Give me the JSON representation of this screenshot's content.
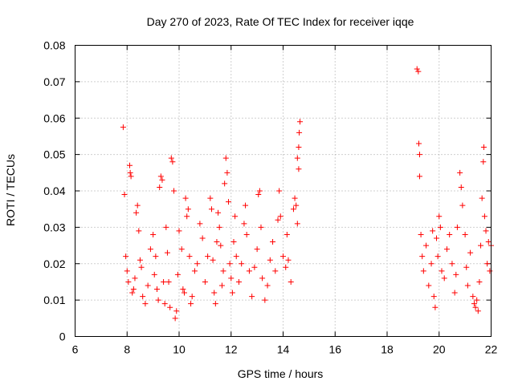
{
  "chart_data": {
    "type": "scatter",
    "title": "Day 270 of 2023, Rate Of TEC Index for receiver iqqe",
    "xlabel": "GPS time / hours",
    "ylabel": "ROTI / TECUs",
    "xlim": [
      6,
      22
    ],
    "ylim": [
      0,
      0.08
    ],
    "grid": true,
    "marker": "+",
    "series_color": "#ff0000",
    "x_ticks": [
      {
        "value": 6,
        "label": "6"
      },
      {
        "value": 8,
        "label": "8"
      },
      {
        "value": 10,
        "label": "10"
      },
      {
        "value": 12,
        "label": "12"
      },
      {
        "value": 14,
        "label": "14"
      },
      {
        "value": 16,
        "label": "16"
      },
      {
        "value": 18,
        "label": "18"
      },
      {
        "value": 20,
        "label": "20"
      },
      {
        "value": 22,
        "label": "22"
      }
    ],
    "y_ticks": [
      {
        "value": 0,
        "label": "0"
      },
      {
        "value": 0.01,
        "label": "0.01"
      },
      {
        "value": 0.02,
        "label": "0.02"
      },
      {
        "value": 0.03,
        "label": "0.03"
      },
      {
        "value": 0.04,
        "label": "0.04"
      },
      {
        "value": 0.05,
        "label": "0.05"
      },
      {
        "value": 0.06,
        "label": "0.06"
      },
      {
        "value": 0.07,
        "label": "0.07"
      },
      {
        "value": 0.08,
        "label": "0.08"
      }
    ],
    "points": [
      [
        7.85,
        0.0575
      ],
      [
        7.9,
        0.039
      ],
      [
        7.95,
        0.022
      ],
      [
        8.0,
        0.018
      ],
      [
        8.05,
        0.015
      ],
      [
        8.1,
        0.047
      ],
      [
        8.12,
        0.045
      ],
      [
        8.15,
        0.044
      ],
      [
        8.2,
        0.012
      ],
      [
        8.25,
        0.013
      ],
      [
        8.3,
        0.016
      ],
      [
        8.35,
        0.034
      ],
      [
        8.4,
        0.036
      ],
      [
        8.45,
        0.029
      ],
      [
        8.5,
        0.021
      ],
      [
        8.55,
        0.019
      ],
      [
        8.6,
        0.011
      ],
      [
        8.7,
        0.009
      ],
      [
        8.8,
        0.014
      ],
      [
        8.9,
        0.024
      ],
      [
        9.0,
        0.028
      ],
      [
        9.05,
        0.017
      ],
      [
        9.1,
        0.022
      ],
      [
        9.15,
        0.013
      ],
      [
        9.2,
        0.01
      ],
      [
        9.25,
        0.041
      ],
      [
        9.3,
        0.044
      ],
      [
        9.35,
        0.043
      ],
      [
        9.4,
        0.015
      ],
      [
        9.45,
        0.009
      ],
      [
        9.5,
        0.03
      ],
      [
        9.55,
        0.023
      ],
      [
        9.6,
        0.015
      ],
      [
        9.65,
        0.008
      ],
      [
        9.7,
        0.049
      ],
      [
        9.75,
        0.048
      ],
      [
        9.8,
        0.04
      ],
      [
        9.85,
        0.005
      ],
      [
        9.9,
        0.007
      ],
      [
        9.95,
        0.017
      ],
      [
        10.0,
        0.029
      ],
      [
        10.1,
        0.024
      ],
      [
        10.15,
        0.013
      ],
      [
        10.2,
        0.012
      ],
      [
        10.25,
        0.038
      ],
      [
        10.3,
        0.033
      ],
      [
        10.35,
        0.035
      ],
      [
        10.4,
        0.022
      ],
      [
        10.45,
        0.009
      ],
      [
        10.5,
        0.011
      ],
      [
        10.6,
        0.018
      ],
      [
        10.7,
        0.02
      ],
      [
        10.8,
        0.031
      ],
      [
        10.9,
        0.027
      ],
      [
        11.0,
        0.015
      ],
      [
        11.1,
        0.022
      ],
      [
        11.2,
        0.038
      ],
      [
        11.25,
        0.035
      ],
      [
        11.3,
        0.021
      ],
      [
        11.35,
        0.012
      ],
      [
        11.4,
        0.009
      ],
      [
        11.45,
        0.026
      ],
      [
        11.5,
        0.034
      ],
      [
        11.55,
        0.03
      ],
      [
        11.6,
        0.025
      ],
      [
        11.65,
        0.014
      ],
      [
        11.7,
        0.018
      ],
      [
        11.75,
        0.042
      ],
      [
        11.8,
        0.049
      ],
      [
        11.85,
        0.045
      ],
      [
        11.9,
        0.037
      ],
      [
        11.95,
        0.02
      ],
      [
        12.0,
        0.016
      ],
      [
        12.05,
        0.012
      ],
      [
        12.1,
        0.026
      ],
      [
        12.15,
        0.033
      ],
      [
        12.2,
        0.022
      ],
      [
        12.3,
        0.015
      ],
      [
        12.4,
        0.02
      ],
      [
        12.5,
        0.031
      ],
      [
        12.55,
        0.036
      ],
      [
        12.6,
        0.028
      ],
      [
        12.7,
        0.018
      ],
      [
        12.8,
        0.011
      ],
      [
        12.9,
        0.019
      ],
      [
        13.0,
        0.024
      ],
      [
        13.05,
        0.039
      ],
      [
        13.1,
        0.04
      ],
      [
        13.15,
        0.03
      ],
      [
        13.2,
        0.016
      ],
      [
        13.3,
        0.01
      ],
      [
        13.4,
        0.014
      ],
      [
        13.5,
        0.021
      ],
      [
        13.6,
        0.026
      ],
      [
        13.7,
        0.018
      ],
      [
        13.8,
        0.032
      ],
      [
        13.85,
        0.04
      ],
      [
        13.9,
        0.033
      ],
      [
        14.0,
        0.022
      ],
      [
        14.1,
        0.019
      ],
      [
        14.15,
        0.028
      ],
      [
        14.2,
        0.021
      ],
      [
        14.3,
        0.015
      ],
      [
        14.4,
        0.035
      ],
      [
        14.45,
        0.038
      ],
      [
        14.5,
        0.036
      ],
      [
        14.55,
        0.031
      ],
      [
        14.6,
        0.046
      ],
      [
        14.62,
        0.056
      ],
      [
        14.65,
        0.059
      ],
      [
        14.6,
        0.052
      ],
      [
        14.55,
        0.049
      ],
      [
        19.15,
        0.0735
      ],
      [
        19.2,
        0.0728
      ],
      [
        19.22,
        0.053
      ],
      [
        19.25,
        0.05
      ],
      [
        19.25,
        0.044
      ],
      [
        19.3,
        0.028
      ],
      [
        19.35,
        0.022
      ],
      [
        19.4,
        0.018
      ],
      [
        19.5,
        0.025
      ],
      [
        19.6,
        0.014
      ],
      [
        19.7,
        0.02
      ],
      [
        19.75,
        0.029
      ],
      [
        19.8,
        0.011
      ],
      [
        19.85,
        0.008
      ],
      [
        19.9,
        0.027
      ],
      [
        19.95,
        0.022
      ],
      [
        20.0,
        0.033
      ],
      [
        20.05,
        0.03
      ],
      [
        20.1,
        0.018
      ],
      [
        20.2,
        0.016
      ],
      [
        20.3,
        0.024
      ],
      [
        20.4,
        0.028
      ],
      [
        20.5,
        0.02
      ],
      [
        20.6,
        0.012
      ],
      [
        20.65,
        0.017
      ],
      [
        20.7,
        0.03
      ],
      [
        20.8,
        0.045
      ],
      [
        20.85,
        0.041
      ],
      [
        20.9,
        0.036
      ],
      [
        21.0,
        0.028
      ],
      [
        21.05,
        0.019
      ],
      [
        21.1,
        0.014
      ],
      [
        21.2,
        0.023
      ],
      [
        21.3,
        0.011
      ],
      [
        21.35,
        0.009
      ],
      [
        21.4,
        0.008
      ],
      [
        21.45,
        0.01
      ],
      [
        21.5,
        0.007
      ],
      [
        21.55,
        0.015
      ],
      [
        21.6,
        0.025
      ],
      [
        21.65,
        0.038
      ],
      [
        21.7,
        0.048
      ],
      [
        21.72,
        0.052
      ],
      [
        21.75,
        0.033
      ],
      [
        21.8,
        0.029
      ],
      [
        21.85,
        0.02
      ],
      [
        21.9,
        0.026
      ],
      [
        21.95,
        0.018
      ],
      [
        22.0,
        0.025
      ]
    ]
  }
}
